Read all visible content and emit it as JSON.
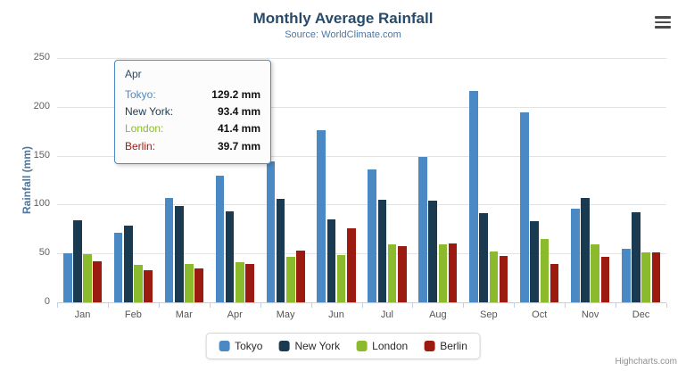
{
  "chart": {
    "title": "Monthly Average Rainfall",
    "subtitle": "Source: WorldClimate.com",
    "credits": "Highcharts.com",
    "menu_icon": "hamburger-icon"
  },
  "chart_data": {
    "type": "bar",
    "title": "Monthly Average Rainfall",
    "subtitle": "Source: WorldClimate.com",
    "xlabel": "",
    "ylabel": "Rainfall (mm)",
    "ylim": [
      0,
      250
    ],
    "yticks": [
      0,
      50,
      100,
      150,
      200,
      250
    ],
    "grid": true,
    "legend_position": "bottom",
    "categories": [
      "Jan",
      "Feb",
      "Mar",
      "Apr",
      "May",
      "Jun",
      "Jul",
      "Aug",
      "Sep",
      "Oct",
      "Nov",
      "Dec"
    ],
    "series": [
      {
        "name": "Tokyo",
        "color": "#4a89c4",
        "values": [
          49.9,
          71.5,
          106.4,
          129.2,
          144.0,
          176.0,
          135.6,
          148.5,
          216.4,
          194.1,
          95.6,
          54.4
        ]
      },
      {
        "name": "New York",
        "color": "#1a3a51",
        "values": [
          83.6,
          78.8,
          98.5,
          93.4,
          106.0,
          84.5,
          105.0,
          104.3,
          91.2,
          83.5,
          106.6,
          92.3
        ]
      },
      {
        "name": "London",
        "color": "#8bbb2c",
        "values": [
          48.9,
          38.8,
          39.3,
          41.4,
          47.0,
          48.3,
          59.0,
          59.6,
          52.4,
          65.2,
          59.3,
          51.2
        ]
      },
      {
        "name": "Berlin",
        "color": "#9c1b10",
        "values": [
          42.4,
          33.2,
          34.5,
          39.7,
          52.6,
          75.5,
          57.4,
          60.4,
          47.6,
          39.1,
          46.8,
          51.1
        ]
      }
    ]
  },
  "tooltip": {
    "category": "Apr",
    "rows": [
      {
        "name": "Tokyo:",
        "value": "129.2 mm"
      },
      {
        "name": "New York:",
        "value": "93.4 mm"
      },
      {
        "name": "London:",
        "value": "41.4 mm"
      },
      {
        "name": "Berlin:",
        "value": "39.7 mm"
      }
    ]
  }
}
